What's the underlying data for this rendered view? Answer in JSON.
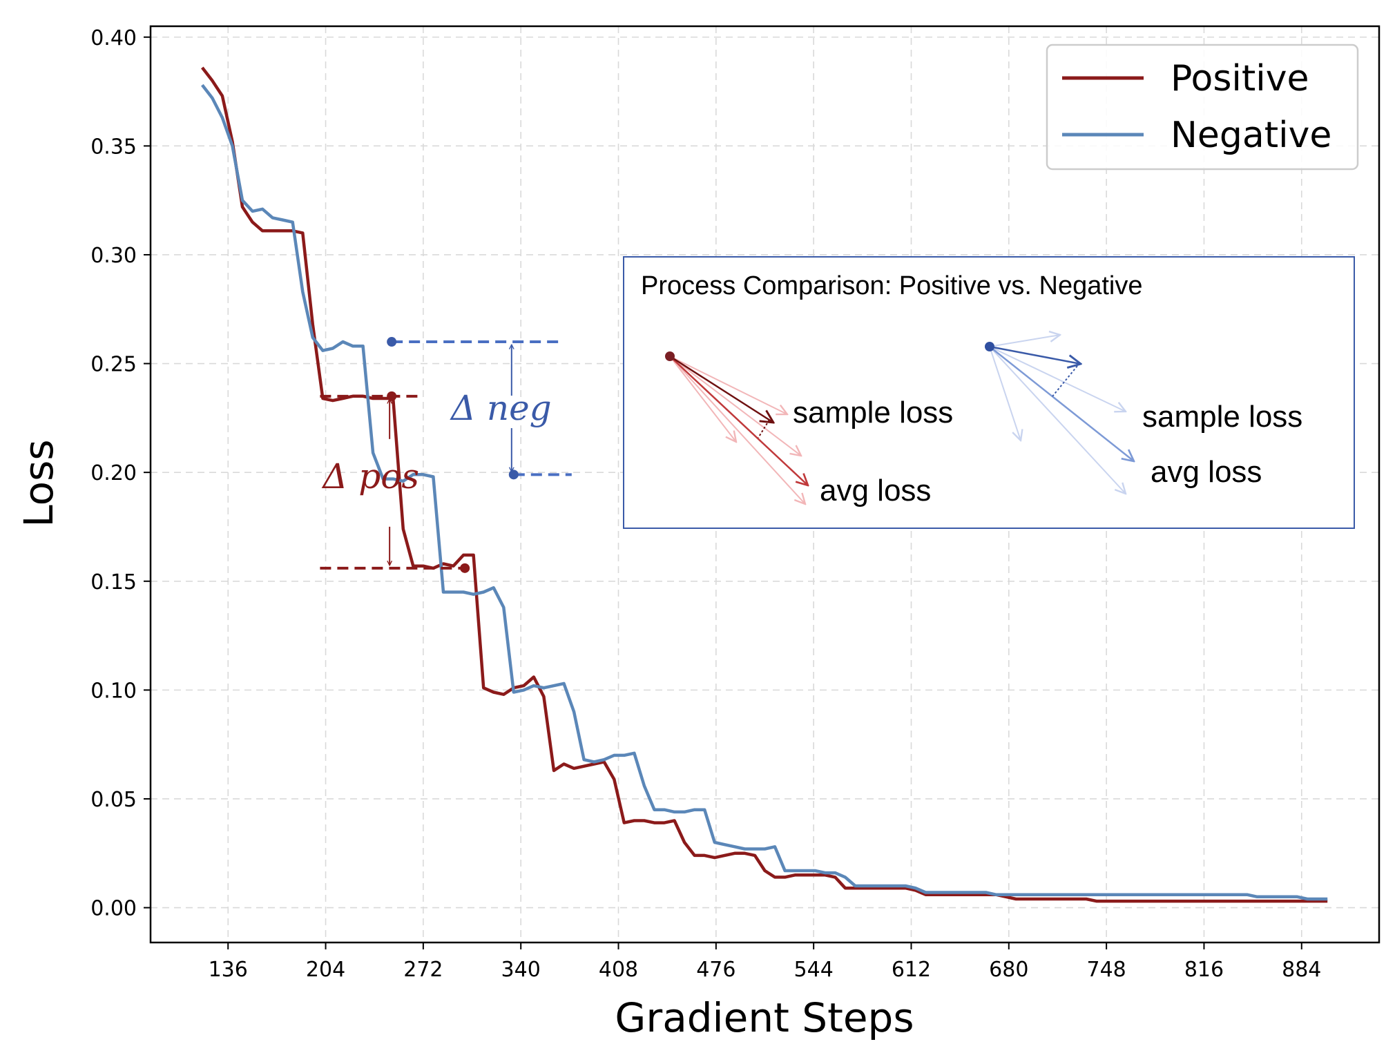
{
  "chart_data": {
    "type": "line",
    "title": "",
    "xlabel": "Gradient Steps",
    "ylabel": "Loss",
    "xlim": [
      82,
      938
    ],
    "ylim": [
      -0.016,
      0.405
    ],
    "xticks": [
      136,
      204,
      272,
      340,
      408,
      476,
      544,
      612,
      680,
      748,
      816,
      884
    ],
    "yticks": [
      0.0,
      0.05,
      0.1,
      0.15,
      0.2,
      0.25,
      0.3,
      0.35,
      0.4
    ],
    "ytick_labels": [
      "0.00",
      "0.05",
      "0.10",
      "0.15",
      "0.20",
      "0.25",
      "0.30",
      "0.35",
      "0.40"
    ],
    "grid": true,
    "legend": "top-right",
    "series": [
      {
        "name": "Positive",
        "color": "#8b1a1a",
        "x": [
          118,
          125,
          132,
          139,
          146,
          153,
          160,
          167,
          174,
          181,
          188,
          195,
          202,
          209,
          216,
          223,
          230,
          237,
          244,
          251,
          258,
          265,
          272,
          279,
          286,
          293,
          300,
          307,
          314,
          321,
          328,
          335,
          342,
          349,
          356,
          363,
          370,
          377,
          384,
          391,
          398,
          405,
          412,
          419,
          426,
          433,
          440,
          447,
          454,
          461,
          468,
          475,
          482,
          489,
          496,
          503,
          510,
          517,
          524,
          531,
          538,
          545,
          552,
          559,
          566,
          573,
          580,
          587,
          594,
          601,
          608,
          615,
          622,
          629,
          636,
          643,
          650,
          657,
          664,
          671,
          678,
          685,
          692,
          699,
          706,
          713,
          720,
          727,
          734,
          741,
          748,
          755,
          762,
          769,
          776,
          783,
          790,
          797,
          804,
          811,
          818,
          825,
          832,
          839,
          846,
          853,
          860,
          867,
          874,
          881,
          888,
          895,
          902
        ],
        "y": [
          0.386,
          0.38,
          0.373,
          0.352,
          0.322,
          0.315,
          0.311,
          0.311,
          0.311,
          0.311,
          0.31,
          0.268,
          0.234,
          0.233,
          0.234,
          0.235,
          0.235,
          0.234,
          0.234,
          0.234,
          0.174,
          0.157,
          0.157,
          0.156,
          0.158,
          0.157,
          0.162,
          0.162,
          0.101,
          0.099,
          0.098,
          0.101,
          0.102,
          0.106,
          0.097,
          0.063,
          0.066,
          0.064,
          0.065,
          0.066,
          0.067,
          0.059,
          0.039,
          0.04,
          0.04,
          0.039,
          0.039,
          0.04,
          0.03,
          0.024,
          0.024,
          0.023,
          0.024,
          0.025,
          0.025,
          0.024,
          0.017,
          0.014,
          0.014,
          0.015,
          0.015,
          0.015,
          0.015,
          0.014,
          0.009,
          0.009,
          0.009,
          0.009,
          0.009,
          0.009,
          0.009,
          0.008,
          0.006,
          0.006,
          0.006,
          0.006,
          0.006,
          0.006,
          0.006,
          0.006,
          0.005,
          0.004,
          0.004,
          0.004,
          0.004,
          0.004,
          0.004,
          0.004,
          0.004,
          0.003,
          0.003,
          0.003,
          0.003,
          0.003,
          0.003,
          0.003,
          0.003,
          0.003,
          0.003,
          0.003,
          0.003,
          0.003,
          0.003,
          0.003,
          0.003,
          0.003,
          0.003,
          0.003,
          0.003,
          0.003,
          0.003,
          0.003,
          0.003
        ]
      },
      {
        "name": "Negative",
        "color": "#5b87b8",
        "x": [
          118,
          125,
          132,
          139,
          146,
          153,
          160,
          167,
          174,
          181,
          188,
          195,
          202,
          209,
          216,
          223,
          230,
          237,
          244,
          251,
          258,
          265,
          272,
          279,
          286,
          293,
          300,
          307,
          314,
          321,
          328,
          335,
          342,
          349,
          356,
          363,
          370,
          377,
          384,
          391,
          398,
          405,
          412,
          419,
          426,
          433,
          440,
          447,
          454,
          461,
          468,
          475,
          482,
          489,
          496,
          503,
          510,
          517,
          524,
          531,
          538,
          545,
          552,
          559,
          566,
          573,
          580,
          587,
          594,
          601,
          608,
          615,
          622,
          629,
          636,
          643,
          650,
          657,
          664,
          671,
          678,
          685,
          692,
          699,
          706,
          713,
          720,
          727,
          734,
          741,
          748,
          755,
          762,
          769,
          776,
          783,
          790,
          797,
          804,
          811,
          818,
          825,
          832,
          839,
          846,
          853,
          860,
          867,
          874,
          881,
          888,
          895,
          902
        ],
        "y": [
          0.378,
          0.372,
          0.363,
          0.35,
          0.325,
          0.32,
          0.321,
          0.317,
          0.316,
          0.315,
          0.283,
          0.262,
          0.256,
          0.257,
          0.26,
          0.258,
          0.258,
          0.209,
          0.197,
          0.197,
          0.196,
          0.199,
          0.199,
          0.198,
          0.145,
          0.145,
          0.145,
          0.144,
          0.145,
          0.147,
          0.138,
          0.099,
          0.1,
          0.102,
          0.101,
          0.102,
          0.103,
          0.09,
          0.068,
          0.067,
          0.068,
          0.07,
          0.07,
          0.071,
          0.056,
          0.045,
          0.045,
          0.044,
          0.044,
          0.045,
          0.045,
          0.03,
          0.029,
          0.028,
          0.027,
          0.027,
          0.027,
          0.028,
          0.017,
          0.017,
          0.017,
          0.017,
          0.016,
          0.016,
          0.014,
          0.01,
          0.01,
          0.01,
          0.01,
          0.01,
          0.01,
          0.009,
          0.007,
          0.007,
          0.007,
          0.007,
          0.007,
          0.007,
          0.007,
          0.006,
          0.006,
          0.006,
          0.006,
          0.006,
          0.006,
          0.006,
          0.006,
          0.006,
          0.006,
          0.006,
          0.006,
          0.006,
          0.006,
          0.006,
          0.006,
          0.006,
          0.006,
          0.006,
          0.006,
          0.006,
          0.006,
          0.006,
          0.006,
          0.006,
          0.006,
          0.005,
          0.005,
          0.005,
          0.005,
          0.005,
          0.004,
          0.004,
          0.004
        ]
      }
    ],
    "annotations": {
      "delta_neg": {
        "label": "Δ neg",
        "color": "#3a5aa8",
        "x_start": 250,
        "x_end": 335,
        "y_high": 0.26,
        "y_low": 0.199
      },
      "delta_pos": {
        "label": "Δ pos",
        "color": "#8b1a1a",
        "x_start": 250,
        "x_end": 301,
        "y_high": 0.235,
        "y_low": 0.156
      }
    },
    "inset": {
      "title": "Process Comparison: Positive vs. Negative",
      "labels": {
        "pos_sample": "sample loss",
        "pos_avg": "avg loss",
        "neg_sample": "sample loss",
        "neg_avg": "avg loss"
      },
      "border_color": "#3a5aa8"
    }
  }
}
